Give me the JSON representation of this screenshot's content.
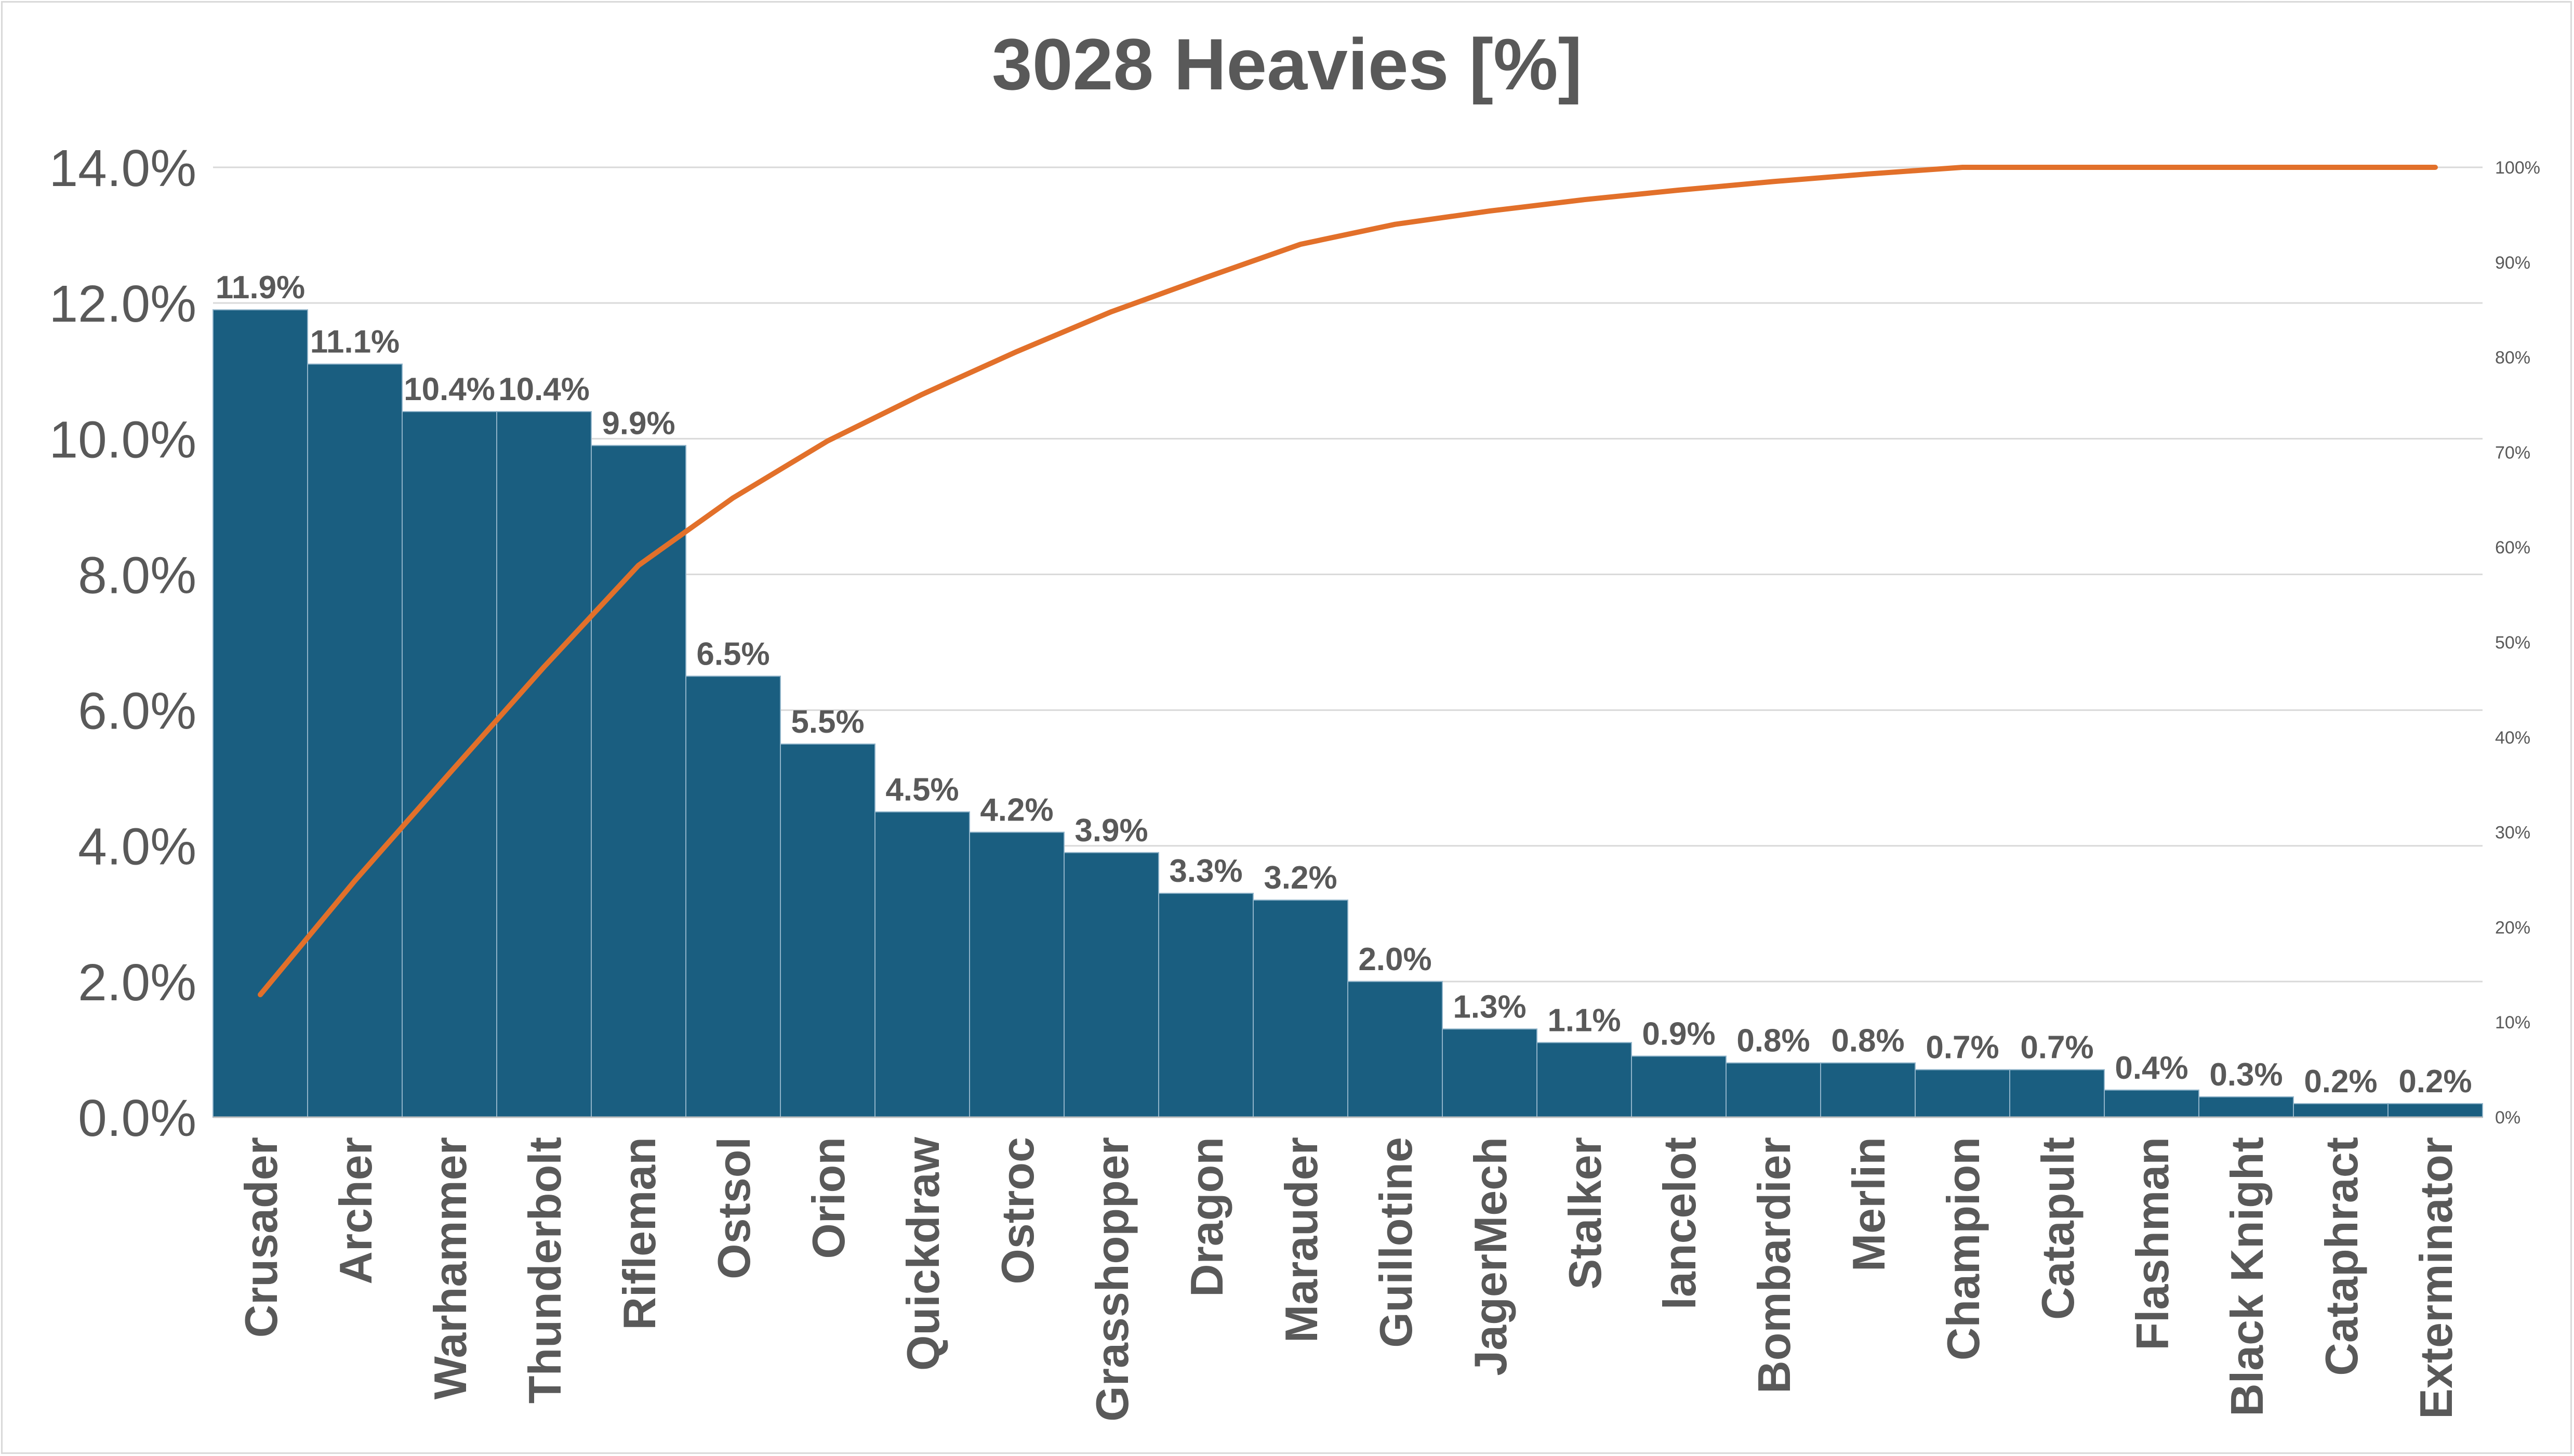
{
  "chart_data": {
    "type": "bar",
    "title": "3028 Heavies [%]",
    "xlabel": "",
    "ylabel": "",
    "categories": [
      "Crusader",
      "Archer",
      "Warhammer",
      "Thunderbolt",
      "Rifleman",
      "Ostsol",
      "Orion",
      "Quickdraw",
      "Ostroc",
      "Grasshopper",
      "Dragon",
      "Marauder",
      "Guillotine",
      "JagerMech",
      "Stalker",
      "lancelot",
      "Bombardier",
      "Merlin",
      "Champion",
      "Catapult",
      "Flashman",
      "Black Knight",
      "Cataphract",
      "Exterminator"
    ],
    "series": [
      {
        "type": "bar",
        "axis": "primary",
        "color": "#1a5e80",
        "values": [
          11.9,
          11.1,
          10.4,
          10.4,
          9.9,
          6.5,
          5.5,
          4.5,
          4.2,
          3.9,
          3.3,
          3.2,
          2.0,
          1.3,
          1.1,
          0.9,
          0.8,
          0.8,
          0.7,
          0.7,
          0.4,
          0.3,
          0.2,
          0.2
        ],
        "data_labels": [
          "11.9%",
          "11.1%",
          "10.4%",
          "10.4%",
          "9.9%",
          "6.5%",
          "5.5%",
          "4.5%",
          "4.2%",
          "3.9%",
          "3.3%",
          "3.2%",
          "2.0%",
          "1.3%",
          "1.1%",
          "0.9%",
          "0.8%",
          "0.8%",
          "0.7%",
          "0.7%",
          "0.4%",
          "0.3%",
          "0.2%",
          "0.2%"
        ]
      },
      {
        "type": "line",
        "axis": "secondary",
        "color": "#e2702a",
        "values": [
          12.9,
          24.9,
          36.2,
          47.4,
          58.1,
          65.2,
          71.2,
          76.1,
          80.6,
          84.8,
          88.4,
          91.9,
          94.0,
          95.4,
          96.6,
          97.6,
          98.5,
          99.3,
          100.0,
          100.0,
          100.0,
          100.0,
          100.0,
          100.0
        ]
      }
    ],
    "ylim": [
      0,
      14
    ],
    "y_ticks": [
      "0.0%",
      "2.0%",
      "4.0%",
      "6.0%",
      "8.0%",
      "10.0%",
      "12.0%",
      "14.0%"
    ],
    "y2lim": [
      0,
      100
    ],
    "y2_ticks": [
      "0%",
      "10%",
      "20%",
      "30%",
      "40%",
      "50%",
      "60%",
      "70%",
      "80%",
      "90%",
      "100%"
    ],
    "grid": true,
    "legend": "none"
  }
}
